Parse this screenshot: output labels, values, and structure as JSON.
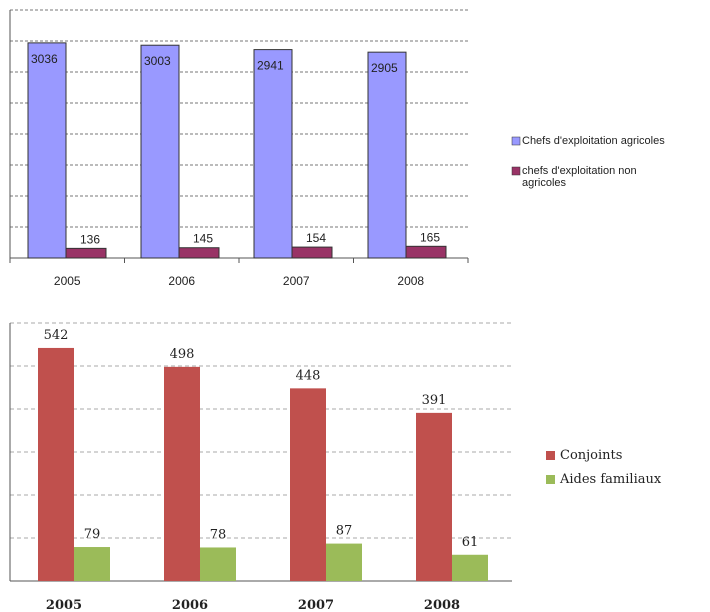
{
  "chart_data": [
    {
      "type": "bar",
      "categories": [
        "2005",
        "2006",
        "2007",
        "2008"
      ],
      "series": [
        {
          "name": "Chefs d'exploitation agricoles",
          "values": [
            3036,
            3003,
            2941,
            2905
          ],
          "color": "#9999ff"
        },
        {
          "name": "chefs d'exploitation non agricoles",
          "values": [
            136,
            145,
            154,
            165
          ],
          "color": "#993366"
        }
      ],
      "legend_lines": [
        [
          "Chefs d'exploitation agricoles"
        ],
        [
          "chefs d'exploitation non",
          "agricoles"
        ]
      ],
      "legend_position": "right",
      "ylim": [
        0,
        3500
      ],
      "grid": true
    },
    {
      "type": "bar",
      "categories": [
        "2005",
        "2006",
        "2007",
        "2008"
      ],
      "series": [
        {
          "name": "Conjoints",
          "values": [
            542,
            498,
            448,
            391
          ],
          "color": "#c0504d"
        },
        {
          "name": "Aides familiaux",
          "values": [
            79,
            78,
            87,
            61
          ],
          "color": "#9bbb59"
        }
      ],
      "legend_lines": [
        [
          "Conjoints"
        ],
        [
          "Aides familiaux"
        ]
      ],
      "legend_position": "right",
      "ylim": [
        0,
        600
      ],
      "grid": true
    }
  ]
}
